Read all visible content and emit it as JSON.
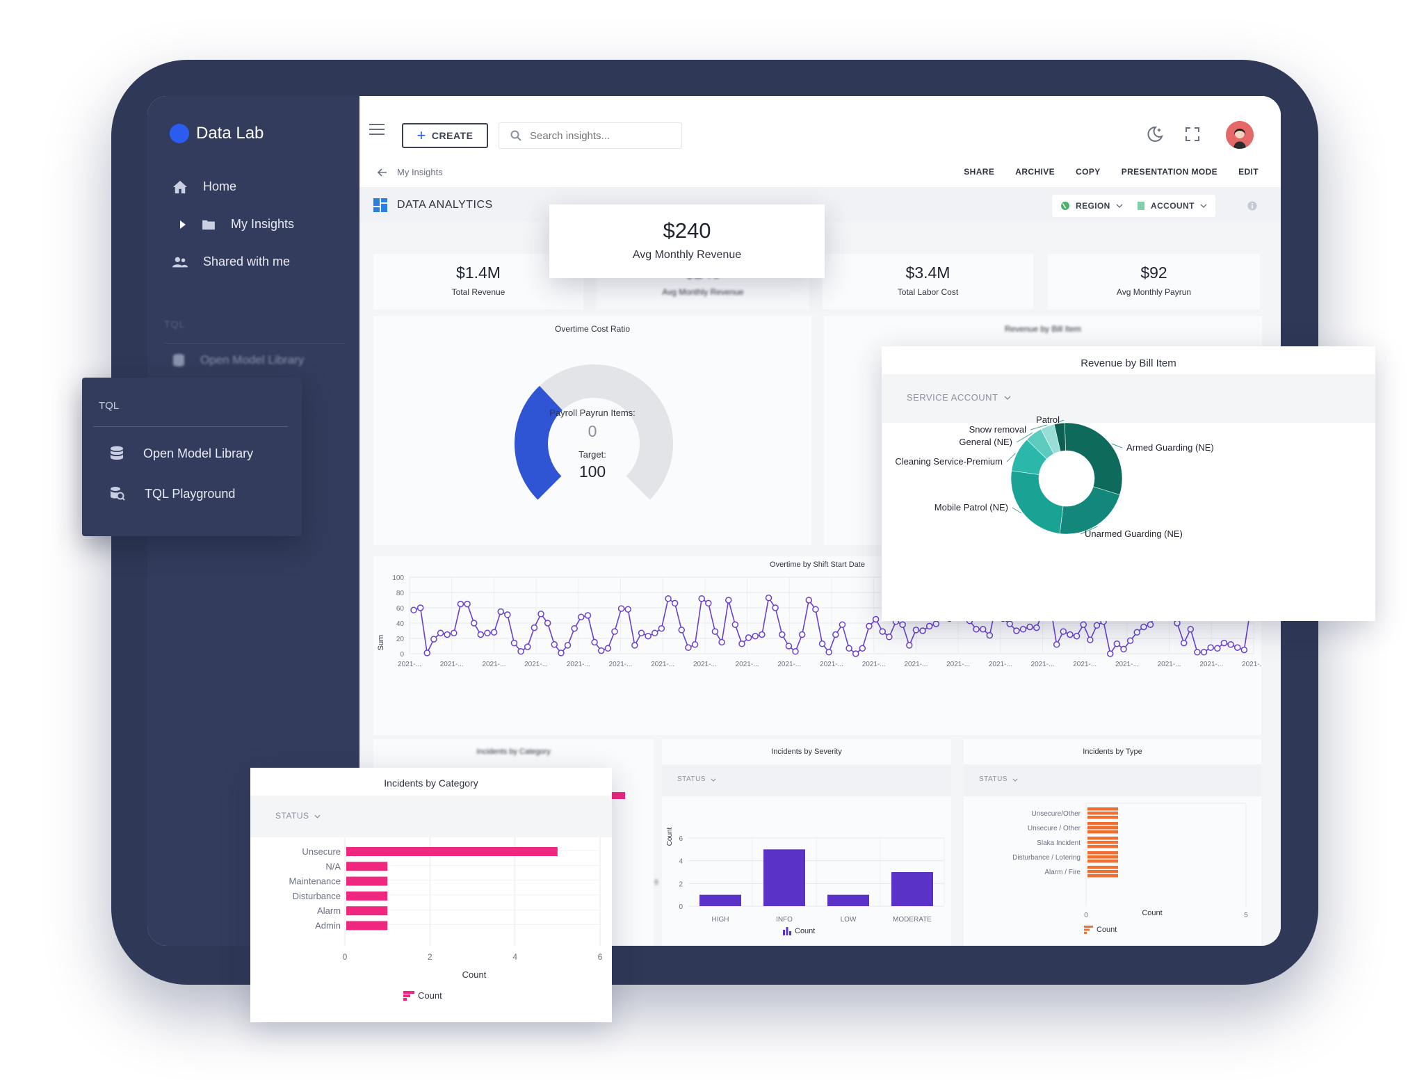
{
  "app": {
    "name": "Data Lab"
  },
  "sidebar": {
    "items": [
      {
        "label": "Home",
        "icon": "home-icon"
      },
      {
        "label": "My Insights",
        "icon": "folder-icon"
      },
      {
        "label": "Shared with me",
        "icon": "people-icon"
      }
    ],
    "section_label": "TQL",
    "blur_item": "Open Model Library"
  },
  "topbar": {
    "create_label": "CREATE",
    "search_placeholder": "Search insights..."
  },
  "breadcrumb": {
    "back": "My Insights"
  },
  "actions": [
    "SHARE",
    "ARCHIVE",
    "COPY",
    "PRESENTATION MODE",
    "EDIT"
  ],
  "dashboard": {
    "title": "DATA ANALYTICS",
    "filters": {
      "region": "REGION",
      "account": "ACCOUNT"
    }
  },
  "kpis": [
    {
      "value": "$1.4M",
      "label": "Total Revenue"
    },
    {
      "value": "$240",
      "label": "Avg Monthly Revenue"
    },
    {
      "value": "$3.4M",
      "label": "Total Labor Cost"
    },
    {
      "value": "$92",
      "label": "Avg Monthly Payrun"
    }
  ],
  "kpi_popup": {
    "value": "$240",
    "label": "Avg Monthly Revenue"
  },
  "gauge": {
    "title": "Overtime Cost Ratio",
    "center_label": "Payroll Payrun Items:",
    "center_value": "0",
    "target_label": "Target:",
    "target_value": "100",
    "fraction": 0.34,
    "color": "#2f55d4"
  },
  "revenue_popup": {
    "title": "Revenue by Bill Item",
    "filter": "SERVICE ACCOUNT",
    "bg_title": "Revenue by Bill Item"
  },
  "tql_menu": {
    "header": "TQL",
    "items": [
      {
        "label": "Open Model Library",
        "icon": "database-icon"
      },
      {
        "label": "TQL Playground",
        "icon": "search-database-icon"
      }
    ]
  },
  "line_chart": {
    "title": "Overtime by Shift Start Date",
    "ylabel": "Sum",
    "yticks": [
      "0",
      "20",
      "40",
      "60",
      "80",
      "100"
    ],
    "xtick_label": "2021-...",
    "xtick_count": 21
  },
  "severity_card": {
    "title": "Incidents by Severity",
    "filter": "STATUS",
    "ylabel": "Count",
    "yticks": [
      "0",
      "2",
      "4",
      "6"
    ],
    "legend": "Count"
  },
  "type_card": {
    "title": "Incidents by Type",
    "filter": "STATUS",
    "xlabel": "Count",
    "xticks": [
      "0",
      "5"
    ],
    "legend": "Count"
  },
  "category_popup": {
    "title": "Incidents by Category",
    "filter": "STATUS",
    "xlabel": "Count",
    "xticks": [
      "0",
      "2",
      "4",
      "6"
    ],
    "legend": "Count",
    "bg_title": "Incidents by Category",
    "bg_tick": "6"
  },
  "chart_data": [
    {
      "type": "pie",
      "title": "Revenue by Bill Item",
      "labels": [
        "Armed Guarding (NE)",
        "Unarmed Guarding (NE)",
        "Mobile Patrol (NE)",
        "Cleaning Service-Premium",
        "General (NE)",
        "Snow removal",
        "Patrol"
      ],
      "values": [
        30,
        22,
        25,
        10,
        5,
        4,
        3
      ],
      "colors": [
        "#0e6b5c",
        "#12877a",
        "#19a394",
        "#2bb8aa",
        "#5ccabf",
        "#98ddd6",
        "#0d5f52"
      ]
    },
    {
      "type": "line",
      "title": "Overtime by Shift Start Date",
      "ylabel": "Sum",
      "ylim": [
        0,
        100
      ],
      "values": [
        57,
        60,
        1,
        19,
        27,
        25,
        27,
        65,
        65,
        40,
        25,
        27,
        28,
        55,
        51,
        14,
        3,
        9,
        34,
        52,
        40,
        12,
        1,
        11,
        33,
        48,
        50,
        15,
        4,
        7,
        29,
        59,
        58,
        11,
        27,
        23,
        27,
        33,
        72,
        66,
        31,
        8,
        12,
        72,
        66,
        29,
        15,
        70,
        38,
        13,
        21,
        23,
        25,
        73,
        60,
        25,
        10,
        3,
        25,
        70,
        58,
        13,
        2,
        25,
        38,
        7,
        0,
        7,
        36,
        45,
        29,
        22,
        42,
        38,
        11,
        31,
        30,
        36,
        39,
        63,
        46,
        51,
        70,
        43,
        32,
        32,
        24,
        66,
        46,
        39,
        30,
        32,
        35,
        34,
        55,
        67,
        12,
        29,
        25,
        23,
        38,
        18,
        37,
        42,
        0,
        13,
        6,
        17,
        28,
        35,
        38,
        55,
        65,
        48,
        40,
        14,
        32,
        2,
        2,
        8,
        7,
        14,
        12,
        8,
        5,
        62
      ]
    },
    {
      "type": "bar",
      "title": "Incidents by Severity",
      "categories": [
        "HIGH",
        "INFO",
        "LOW",
        "MODERATE"
      ],
      "values": [
        1,
        5,
        1,
        3
      ],
      "ylabel": "Count",
      "ylim": [
        0,
        6
      ],
      "color": "#5a32c8"
    },
    {
      "type": "bar",
      "title": "Incidents by Type",
      "categories": [
        "Unsecure/Other",
        "Unsecure / Other",
        "Slaka Incident",
        "Disturbance / Lotering",
        "Alarm / Fire"
      ],
      "values": [
        1,
        1,
        1,
        1,
        1
      ],
      "xlabel": "Count",
      "xlim": [
        0,
        5
      ],
      "color": "#f07032"
    },
    {
      "type": "bar",
      "title": "Incidents by Category",
      "categories": [
        "Unsecure",
        "N/A",
        "Maintenance",
        "Disturbance",
        "Alarm",
        "Admin"
      ],
      "values": [
        5,
        1,
        1,
        1,
        1,
        1
      ],
      "xlabel": "Count",
      "xlim": [
        0,
        6
      ],
      "color": "#f0277f"
    }
  ]
}
